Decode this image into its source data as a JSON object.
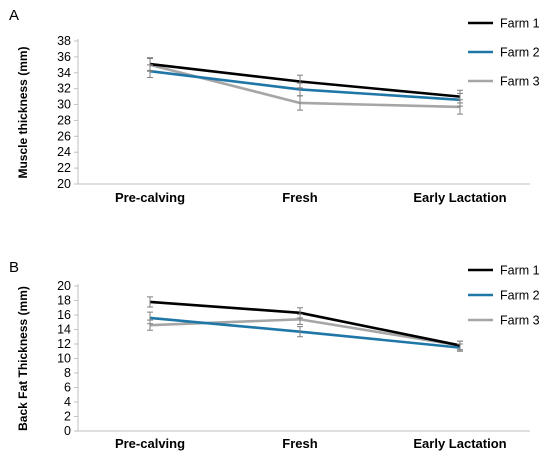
{
  "chart_data": [
    {
      "panel_label": "A",
      "type": "line",
      "ylabel": "Muscle thickness (mm)",
      "xlabel": "",
      "categories": [
        "Pre-calving",
        "Fresh",
        "Early Lactation"
      ],
      "ylim": [
        20,
        38
      ],
      "yticks": [
        20,
        22,
        24,
        26,
        28,
        30,
        32,
        34,
        36,
        38
      ],
      "legend_position": "top-right",
      "series": [
        {
          "name": "Farm 1",
          "color": "#000000",
          "values": [
            35.1,
            32.9,
            31.0
          ],
          "errors": [
            0.8,
            0.8,
            0.8
          ]
        },
        {
          "name": "Farm 2",
          "color": "#1f77a8",
          "values": [
            34.2,
            31.9,
            30.6
          ],
          "errors": [
            0.8,
            0.8,
            0.8
          ]
        },
        {
          "name": "Farm 3",
          "color": "#a6a6a6",
          "values": [
            35.0,
            30.2,
            29.7
          ],
          "errors": [
            0.8,
            0.9,
            0.9
          ]
        }
      ]
    },
    {
      "panel_label": "B",
      "type": "line",
      "ylabel": "Back Fat Thickness (mm)",
      "xlabel": "",
      "categories": [
        "Pre-calving",
        "Fresh",
        "Early Lactation"
      ],
      "ylim": [
        0,
        20
      ],
      "yticks": [
        0,
        2,
        4,
        6,
        8,
        10,
        12,
        14,
        16,
        18,
        20
      ],
      "legend_position": "top-right",
      "series": [
        {
          "name": "Farm 1",
          "color": "#000000",
          "values": [
            17.8,
            16.3,
            11.8
          ],
          "errors": [
            0.7,
            0.7,
            0.6
          ]
        },
        {
          "name": "Farm 2",
          "color": "#1f77a8",
          "values": [
            15.6,
            13.7,
            11.5
          ],
          "errors": [
            0.8,
            0.7,
            0.5
          ]
        },
        {
          "name": "Farm 3",
          "color": "#a6a6a6",
          "values": [
            14.6,
            15.4,
            11.8
          ],
          "errors": [
            0.7,
            0.7,
            0.6
          ]
        }
      ]
    }
  ]
}
